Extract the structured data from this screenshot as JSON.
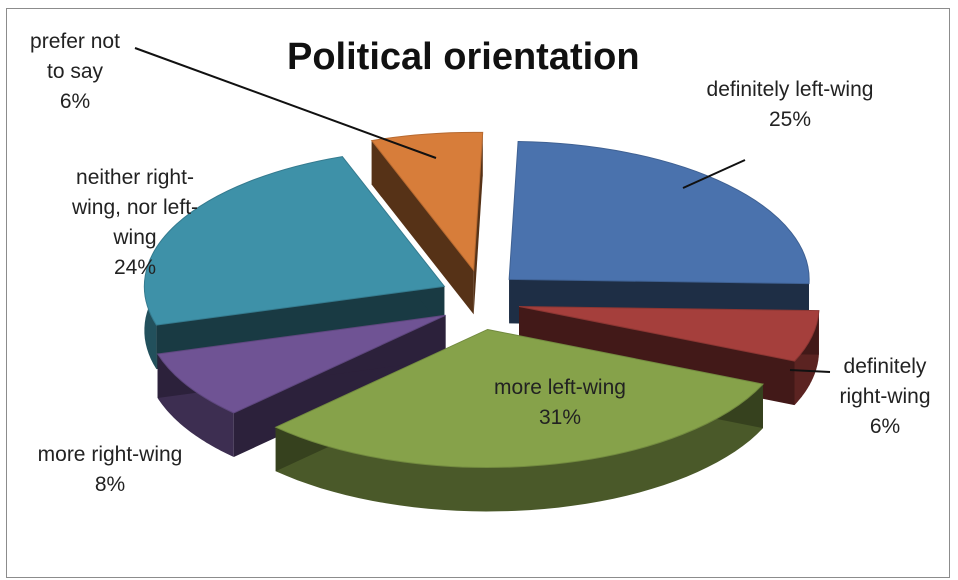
{
  "chart_data": {
    "type": "pie",
    "title": "Political orientation",
    "exploded": true,
    "three_d": true,
    "slices": [
      {
        "label": "definitely left-wing",
        "value": 25,
        "display_label": "definitely left-wing",
        "display_pct": "25%",
        "color": "#4a72ad"
      },
      {
        "label": "definitely right-wing",
        "value": 6,
        "display_label": "definitely right-wing",
        "display_pct": "6%",
        "color": "#a53f3c"
      },
      {
        "label": "more left-wing",
        "value": 31,
        "display_label": "more left-wing",
        "display_pct": "31%",
        "color": "#86a24a"
      },
      {
        "label": "more right-wing",
        "value": 8,
        "display_label": "more right-wing",
        "display_pct": "8%",
        "color": "#6f5394"
      },
      {
        "label": "neither right-wing, nor left-wing",
        "value": 24,
        "display_label": "neither right-wing, nor left-wing",
        "display_pct": "24%",
        "color": "#3e91a8"
      },
      {
        "label": "prefer not to say",
        "value": 6,
        "display_label": "prefer not to say",
        "display_pct": "6%",
        "color": "#d77d3a"
      }
    ]
  }
}
